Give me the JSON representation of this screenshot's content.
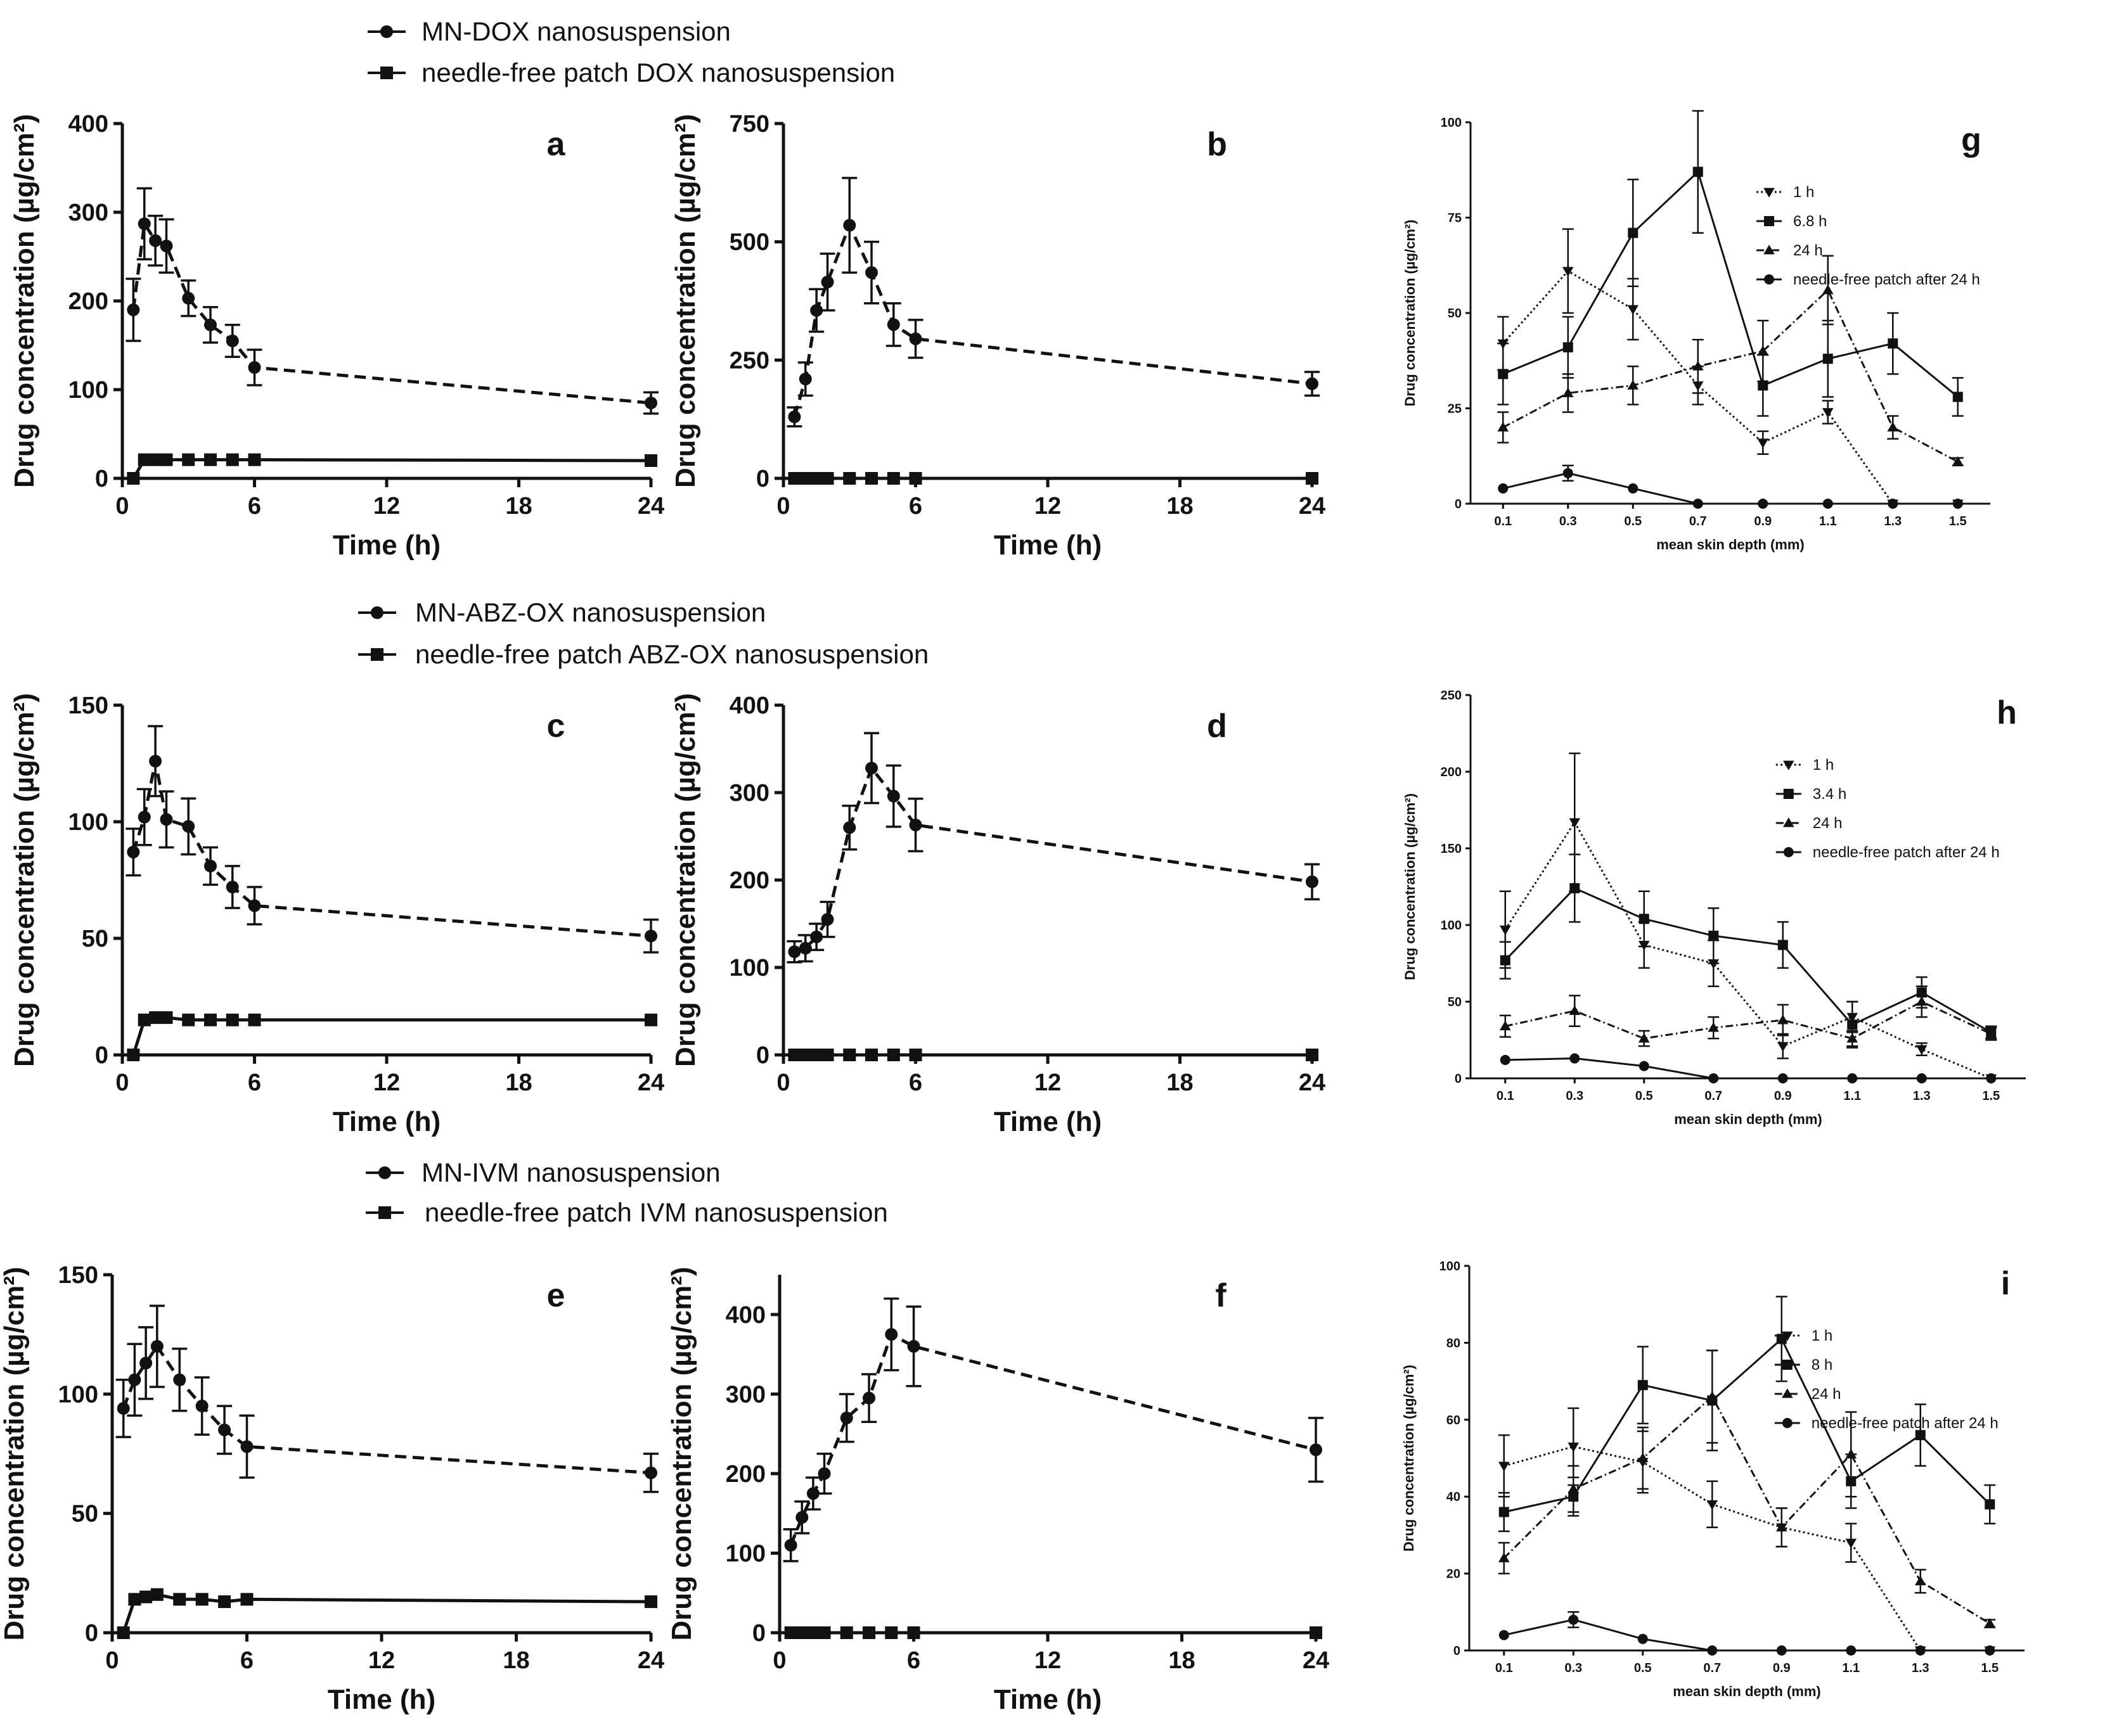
{
  "legends": [
    {
      "series1": "MN-DOX nanosuspension",
      "series2": "needle-free patch DOX nanosuspension"
    },
    {
      "series1": "MN-ABZ-OX nanosuspension",
      "series2": "needle-free patch ABZ-OX nanosuspension"
    },
    {
      "series1": "MN-IVM nanosuspension",
      "series2": "needle-free patch IVM nanosuspension"
    }
  ],
  "chart_data": [
    {
      "id": "a",
      "type": "line",
      "letter": "a",
      "xlabel": "Time (h)",
      "ylabel": "Drug concentration (µg/cm²)",
      "xlim": [
        0,
        24
      ],
      "ylim": [
        0,
        400
      ],
      "xticks": [
        0,
        6,
        12,
        18,
        24
      ],
      "yticks": [
        0,
        100,
        200,
        300,
        400
      ],
      "series": [
        {
          "name": "MN-DOX nanosuspension",
          "marker": "circle",
          "line": "dashed",
          "x": [
            0.5,
            1,
            1.5,
            2,
            3,
            4,
            5,
            6,
            24
          ],
          "y": [
            190,
            287,
            268,
            262,
            203,
            173,
            155,
            125,
            85
          ],
          "err": [
            35,
            40,
            28,
            30,
            20,
            20,
            18,
            20,
            12
          ]
        },
        {
          "name": "needle-free patch DOX nanosuspension",
          "marker": "square",
          "line": "solid",
          "x": [
            0.5,
            1,
            1.5,
            2,
            3,
            4,
            5,
            6,
            24
          ],
          "y": [
            0,
            21,
            21,
            21,
            21,
            21,
            21,
            21,
            20
          ],
          "err": [
            0,
            0,
            0,
            0,
            0,
            0,
            0,
            0,
            0
          ]
        }
      ]
    },
    {
      "id": "b",
      "type": "line",
      "letter": "b",
      "xlabel": "Time (h)",
      "ylabel": "Drug concentration (µg/cm²)",
      "xlim": [
        0,
        24
      ],
      "ylim": [
        0,
        750
      ],
      "xticks": [
        0,
        6,
        12,
        18,
        24
      ],
      "yticks": [
        0,
        250,
        500,
        750
      ],
      "series": [
        {
          "name": "MN-DOX nanosuspension",
          "marker": "circle",
          "line": "dashed",
          "x": [
            0.5,
            1,
            1.5,
            2,
            3,
            4,
            5,
            6,
            24
          ],
          "y": [
            130,
            210,
            355,
            415,
            535,
            435,
            325,
            295,
            200
          ],
          "err": [
            20,
            35,
            45,
            60,
            100,
            65,
            45,
            40,
            25
          ]
        },
        {
          "name": "needle-free patch DOX nanosuspension",
          "marker": "square",
          "line": "solid",
          "x": [
            0.5,
            1,
            1.5,
            2,
            3,
            4,
            5,
            6,
            24
          ],
          "y": [
            0,
            0,
            0,
            0,
            0,
            0,
            0,
            0,
            0
          ],
          "err": [
            0,
            0,
            0,
            0,
            0,
            0,
            0,
            0,
            0
          ]
        }
      ]
    },
    {
      "id": "g",
      "type": "line",
      "letter": "g",
      "xlabel": "mean skin depth (mm)",
      "ylabel": "Drug concentration (µg/cm²)",
      "xlim": [
        0,
        1.6
      ],
      "ylim": [
        0,
        100
      ],
      "xticks": [
        0.1,
        0.3,
        0.5,
        0.7,
        0.9,
        1.1,
        1.3,
        1.5
      ],
      "yticks": [
        0,
        25,
        50,
        75,
        100
      ],
      "series": [
        {
          "name": "1 h",
          "marker": "tri-down",
          "line": "dotted",
          "x": [
            0.1,
            0.3,
            0.5,
            0.7,
            0.9,
            1.1,
            1.3,
            1.5
          ],
          "y": [
            42,
            61,
            51,
            31,
            16,
            24,
            0,
            0
          ],
          "err": [
            7,
            11,
            8,
            5,
            3,
            3,
            0,
            0
          ]
        },
        {
          "name": "6.8 h",
          "marker": "square",
          "line": "solid",
          "x": [
            0.1,
            0.3,
            0.5,
            0.7,
            0.9,
            1.1,
            1.3,
            1.5
          ],
          "y": [
            34,
            41,
            71,
            87,
            31,
            38,
            42,
            28
          ],
          "err": [
            8,
            8,
            14,
            16,
            8,
            10,
            8,
            5
          ]
        },
        {
          "name": "24 h",
          "marker": "tri-up",
          "line": "dashdot",
          "x": [
            0.1,
            0.3,
            0.5,
            0.7,
            0.9,
            1.1,
            1.3,
            1.5
          ],
          "y": [
            20,
            29,
            31,
            36,
            40,
            56,
            20,
            11
          ],
          "err": [
            4,
            5,
            5,
            7,
            8,
            9,
            3,
            1
          ]
        },
        {
          "name": "needle-free patch after 24 h",
          "marker": "circle",
          "line": "solid",
          "x": [
            0.1,
            0.3,
            0.5,
            0.7,
            0.9,
            1.1,
            1.3,
            1.5
          ],
          "y": [
            4,
            8,
            4,
            0,
            0,
            0,
            0,
            0
          ],
          "err": [
            0,
            2,
            0,
            0,
            0,
            0,
            0,
            0
          ]
        }
      ]
    },
    {
      "id": "c",
      "type": "line",
      "letter": "c",
      "xlabel": "Time (h)",
      "ylabel": "Drug concentration (µg/cm²)",
      "xlim": [
        0,
        24
      ],
      "ylim": [
        0,
        150
      ],
      "xticks": [
        0,
        6,
        12,
        18,
        24
      ],
      "yticks": [
        0,
        50,
        100,
        150
      ],
      "series": [
        {
          "name": "MN-ABZ-OX nanosuspension",
          "marker": "circle",
          "line": "dashed",
          "x": [
            0.5,
            1,
            1.5,
            2,
            3,
            4,
            5,
            6,
            24
          ],
          "y": [
            87,
            102,
            126,
            101,
            98,
            81,
            72,
            64,
            51
          ],
          "err": [
            10,
            12,
            15,
            12,
            12,
            8,
            9,
            8,
            7
          ]
        },
        {
          "name": "needle-free patch ABZ-OX nanosuspension",
          "marker": "square",
          "line": "solid",
          "x": [
            0.5,
            1,
            1.5,
            2,
            3,
            4,
            5,
            6,
            24
          ],
          "y": [
            0,
            15,
            16,
            16,
            15,
            15,
            15,
            15,
            15
          ],
          "err": [
            0,
            0,
            0,
            0,
            0,
            0,
            0,
            0,
            0
          ]
        }
      ]
    },
    {
      "id": "d",
      "type": "line",
      "letter": "d",
      "xlabel": "Time (h)",
      "ylabel": "Drug concentration (µg/cm²)",
      "xlim": [
        0,
        24
      ],
      "ylim": [
        0,
        400
      ],
      "xticks": [
        0,
        6,
        12,
        18,
        24
      ],
      "yticks": [
        0,
        100,
        200,
        300,
        400
      ],
      "series": [
        {
          "name": "MN-ABZ-OX nanosuspension",
          "marker": "circle",
          "line": "dashed",
          "x": [
            0.5,
            1,
            1.5,
            2,
            3,
            4,
            5,
            6,
            24
          ],
          "y": [
            118,
            122,
            135,
            155,
            260,
            328,
            296,
            263,
            198
          ],
          "err": [
            12,
            15,
            15,
            20,
            25,
            40,
            35,
            30,
            20
          ]
        },
        {
          "name": "needle-free patch ABZ-OX nanosuspension",
          "marker": "square",
          "line": "solid",
          "x": [
            0.5,
            1,
            1.5,
            2,
            3,
            4,
            5,
            6,
            24
          ],
          "y": [
            0,
            0,
            0,
            0,
            0,
            0,
            0,
            0,
            0
          ],
          "err": [
            0,
            0,
            0,
            0,
            0,
            0,
            0,
            0,
            0
          ]
        }
      ]
    },
    {
      "id": "h",
      "type": "line",
      "letter": "h",
      "xlabel": "mean skin depth (mm)",
      "ylabel": "Drug concentration (µg/cm²)",
      "xlim": [
        0,
        1.6
      ],
      "ylim": [
        0,
        250
      ],
      "xticks": [
        0.1,
        0.3,
        0.5,
        0.7,
        0.9,
        1.1,
        1.3,
        1.5
      ],
      "yticks": [
        0,
        50,
        100,
        150,
        200,
        250
      ],
      "series": [
        {
          "name": "1 h",
          "marker": "tri-down",
          "line": "dotted",
          "x": [
            0.1,
            0.3,
            0.5,
            0.7,
            0.9,
            1.1,
            1.3,
            1.5
          ],
          "y": [
            97,
            167,
            87,
            75,
            21,
            40,
            19,
            0
          ],
          "err": [
            25,
            45,
            15,
            15,
            8,
            10,
            4,
            0
          ]
        },
        {
          "name": "3.4 h",
          "marker": "square",
          "line": "solid",
          "x": [
            0.1,
            0.3,
            0.5,
            0.7,
            0.9,
            1.1,
            1.3,
            1.5
          ],
          "y": [
            77,
            124,
            104,
            93,
            87,
            35,
            56,
            30
          ],
          "err": [
            12,
            22,
            18,
            18,
            15,
            15,
            10,
            4
          ]
        },
        {
          "name": "24 h",
          "marker": "tri-up",
          "line": "dashdot",
          "x": [
            0.1,
            0.3,
            0.5,
            0.7,
            0.9,
            1.1,
            1.3,
            1.5
          ],
          "y": [
            34,
            44,
            26,
            33,
            38,
            26,
            50,
            29
          ],
          "err": [
            7,
            10,
            5,
            7,
            10,
            5,
            10,
            4
          ]
        },
        {
          "name": "needle-free patch after 24 h",
          "marker": "circle",
          "line": "solid",
          "x": [
            0.1,
            0.3,
            0.5,
            0.7,
            0.9,
            1.1,
            1.3,
            1.5
          ],
          "y": [
            12,
            13,
            8,
            0,
            0,
            0,
            0,
            0
          ],
          "err": [
            0,
            0,
            0,
            0,
            0,
            0,
            0,
            0
          ]
        }
      ]
    },
    {
      "id": "e",
      "type": "line",
      "letter": "e",
      "xlabel": "Time (h)",
      "ylabel": "Drug concentration (µg/cm²)",
      "xlim": [
        0,
        24
      ],
      "ylim": [
        0,
        150
      ],
      "xticks": [
        0,
        6,
        12,
        18,
        24
      ],
      "yticks": [
        0,
        50,
        100,
        150
      ],
      "series": [
        {
          "name": "MN-IVM nanosuspension",
          "marker": "circle",
          "line": "dashed",
          "x": [
            0.5,
            1,
            1.5,
            2,
            3,
            4,
            5,
            6,
            24
          ],
          "y": [
            94,
            106,
            113,
            120,
            106,
            95,
            85,
            78,
            67
          ],
          "err": [
            12,
            15,
            15,
            17,
            13,
            12,
            10,
            13,
            8
          ]
        },
        {
          "name": "needle-free patch IVM nanosuspension",
          "marker": "square",
          "line": "solid",
          "x": [
            0.5,
            1,
            1.5,
            2,
            3,
            4,
            5,
            6,
            24
          ],
          "y": [
            0,
            14,
            15,
            16,
            14,
            14,
            13,
            14,
            13
          ],
          "err": [
            0,
            0,
            0,
            0,
            0,
            0,
            0,
            0,
            0
          ]
        }
      ]
    },
    {
      "id": "f",
      "type": "line",
      "letter": "f",
      "xlabel": "Time (h)",
      "ylabel": "Drug concentration (µg/cm²)",
      "xlim": [
        0,
        24
      ],
      "ylim": [
        0,
        450
      ],
      "xticks": [
        0,
        6,
        12,
        18,
        24
      ],
      "yticks": [
        0,
        100,
        200,
        300,
        400
      ],
      "series": [
        {
          "name": "MN-IVM nanosuspension",
          "marker": "circle",
          "line": "dashed",
          "x": [
            0.5,
            1,
            1.5,
            2,
            3,
            4,
            5,
            6,
            24
          ],
          "y": [
            110,
            145,
            175,
            200,
            270,
            295,
            375,
            360,
            230
          ],
          "err": [
            20,
            20,
            20,
            25,
            30,
            30,
            45,
            50,
            40
          ]
        },
        {
          "name": "needle-free patch IVM nanosuspension",
          "marker": "square",
          "line": "solid",
          "x": [
            0.5,
            1,
            1.5,
            2,
            3,
            4,
            5,
            6,
            24
          ],
          "y": [
            0,
            0,
            0,
            0,
            0,
            0,
            0,
            0,
            0
          ],
          "err": [
            0,
            0,
            0,
            0,
            0,
            0,
            0,
            0,
            0
          ]
        }
      ]
    },
    {
      "id": "i",
      "type": "line",
      "letter": "i",
      "xlabel": "mean skin depth (mm)",
      "ylabel": "Drug concentration (µg/cm²)",
      "xlim": [
        0,
        1.6
      ],
      "ylim": [
        0,
        100
      ],
      "xticks": [
        0.1,
        0.3,
        0.5,
        0.7,
        0.9,
        1.1,
        1.3,
        1.5
      ],
      "yticks": [
        0,
        20,
        40,
        60,
        80,
        100
      ],
      "series": [
        {
          "name": "1 h",
          "marker": "tri-down",
          "line": "dotted",
          "x": [
            0.1,
            0.3,
            0.5,
            0.7,
            0.9,
            1.1,
            1.3,
            1.5
          ],
          "y": [
            48,
            53,
            49,
            38,
            32,
            28,
            0,
            0
          ],
          "err": [
            8,
            10,
            8,
            6,
            5,
            5,
            0,
            0
          ]
        },
        {
          "name": "8 h",
          "marker": "square",
          "line": "solid",
          "x": [
            0.1,
            0.3,
            0.5,
            0.7,
            0.9,
            1.1,
            1.3,
            1.5
          ],
          "y": [
            36,
            40,
            69,
            65,
            81,
            44,
            56,
            38
          ],
          "err": [
            5,
            5,
            10,
            13,
            11,
            7,
            8,
            5
          ]
        },
        {
          "name": "24 h",
          "marker": "tri-up",
          "line": "dashdot",
          "x": [
            0.1,
            0.3,
            0.5,
            0.7,
            0.9,
            1.1,
            1.3,
            1.5
          ],
          "y": [
            24,
            42,
            50,
            66,
            32,
            51,
            18,
            7
          ],
          "err": [
            4,
            6,
            8,
            12,
            5,
            11,
            3,
            1
          ]
        },
        {
          "name": "needle-free patch after 24 h",
          "marker": "circle",
          "line": "solid",
          "x": [
            0.1,
            0.3,
            0.5,
            0.7,
            0.9,
            1.1,
            1.3,
            1.5
          ],
          "y": [
            4,
            8,
            3,
            0,
            0,
            0,
            0,
            0
          ],
          "err": [
            0,
            2,
            0,
            0,
            0,
            0,
            0,
            0
          ]
        }
      ]
    }
  ]
}
